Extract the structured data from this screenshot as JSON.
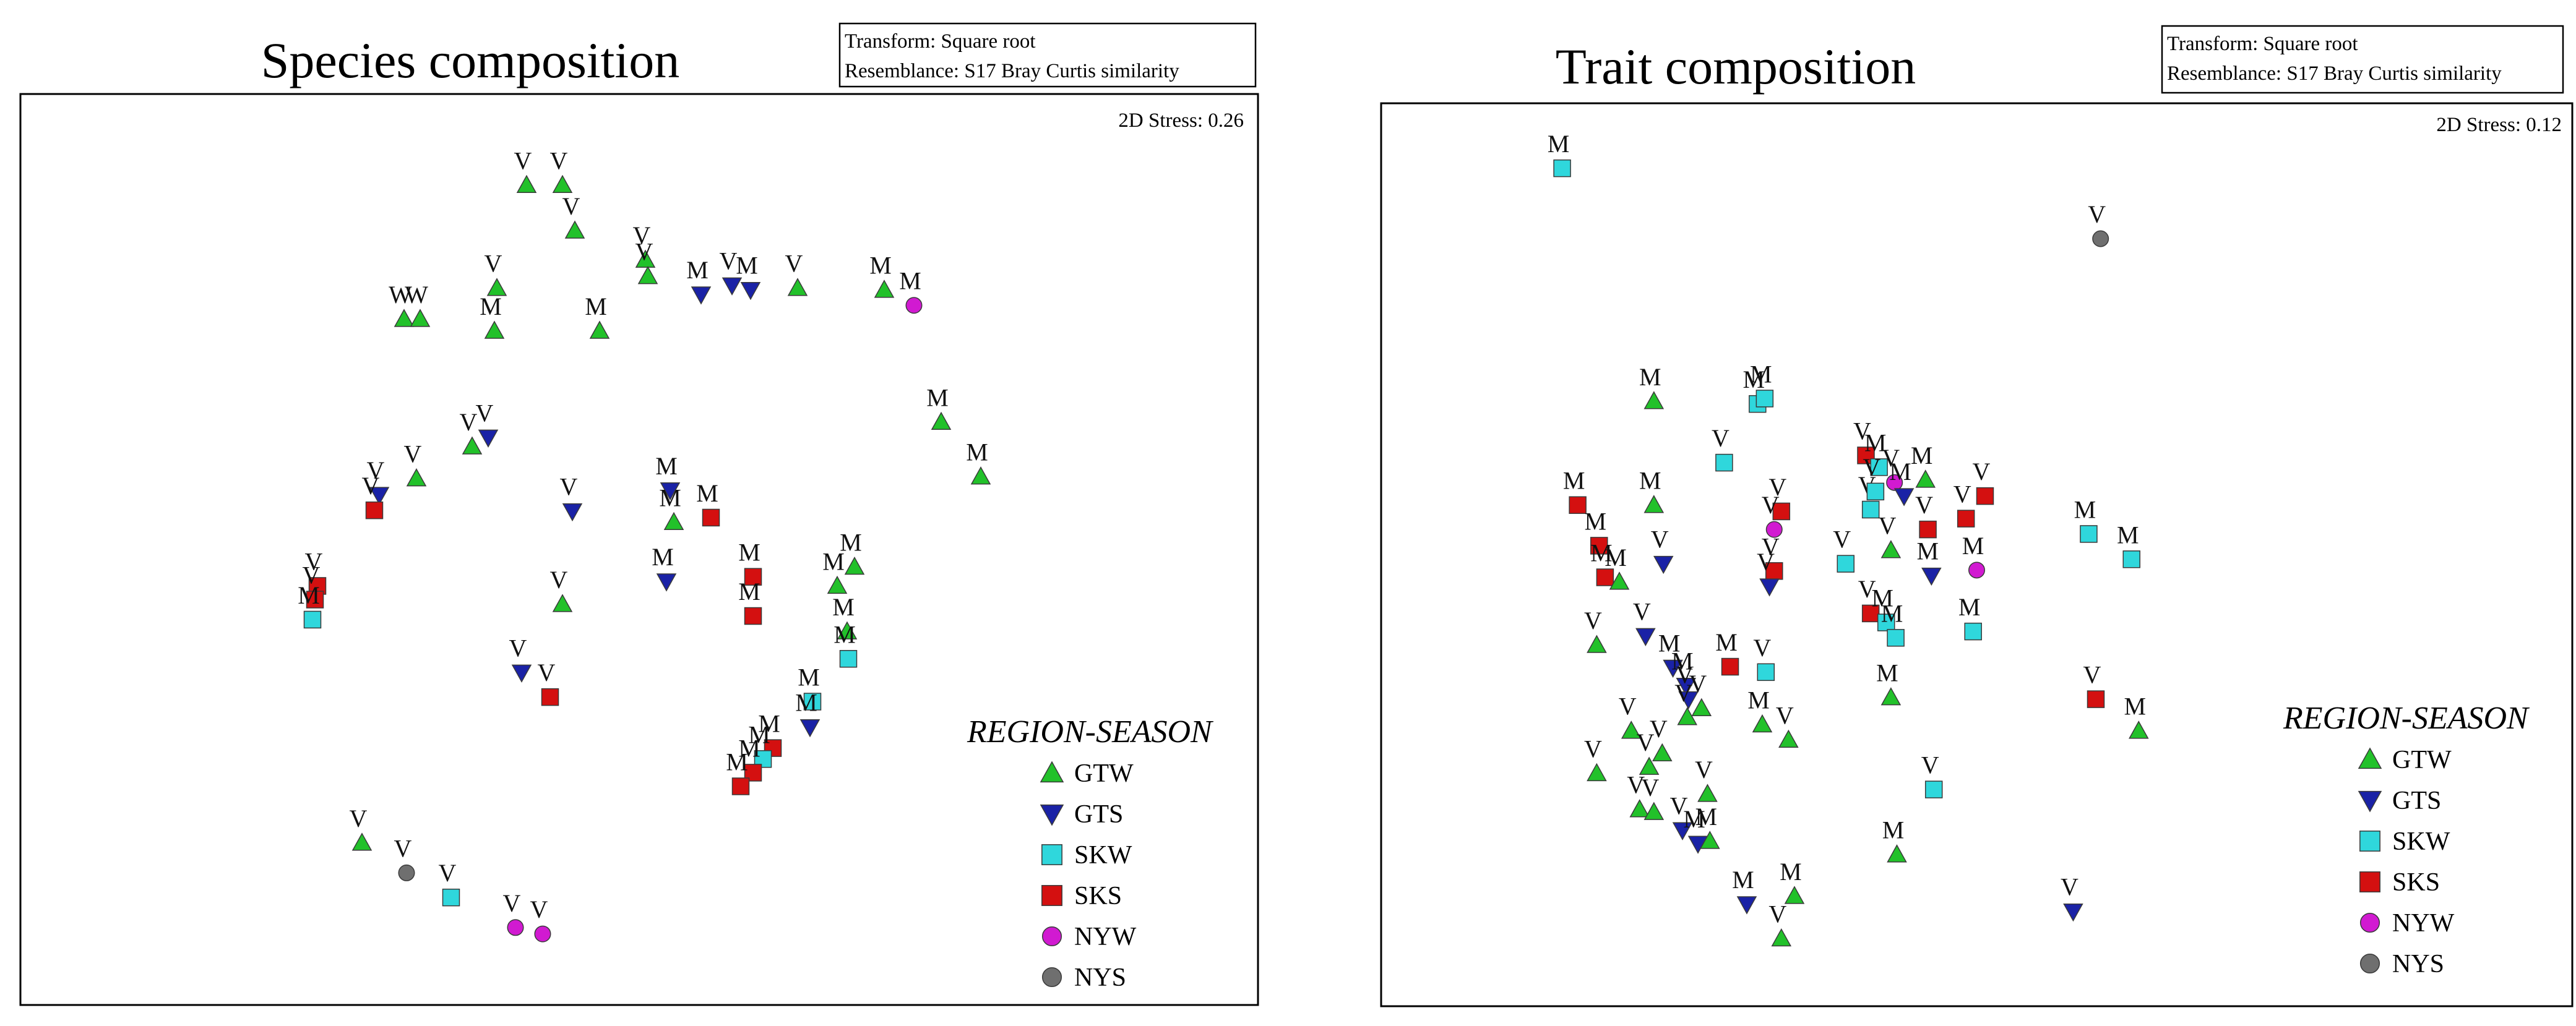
{
  "chart_data": [
    {
      "type": "scatter",
      "title": "Species composition",
      "info_lines": [
        "Transform: Square root",
        "Resemblance: S17 Bray Curtis similarity"
      ],
      "stress": "2D Stress: 0.26",
      "xlabel": "",
      "ylabel": "",
      "grid": false,
      "legend_position": "bottom-right",
      "legend_title": "REGION-SEASON",
      "groups": [
        {
          "name": "GTW",
          "shape": "triangle-up",
          "color": "#22c12a"
        },
        {
          "name": "GTS",
          "shape": "triangle-down",
          "color": "#1a22a6"
        },
        {
          "name": "SKW",
          "shape": "square",
          "color": "#2fd7dc"
        },
        {
          "name": "SKS",
          "shape": "square",
          "color": "#d41010"
        },
        {
          "name": "NYW",
          "shape": "circle",
          "color": "#d11ad1"
        },
        {
          "name": "NYS",
          "shape": "circle",
          "color": "#6f6f6f"
        }
      ],
      "points": [
        {
          "group": "GTW",
          "label": "V",
          "x": 0.409,
          "y": 0.9
        },
        {
          "group": "GTW",
          "label": "V",
          "x": 0.438,
          "y": 0.9
        },
        {
          "group": "GTW",
          "label": "V",
          "x": 0.448,
          "y": 0.85
        },
        {
          "group": "GTW",
          "label": "V",
          "x": 0.505,
          "y": 0.818
        },
        {
          "group": "GTW",
          "label": "V",
          "x": 0.507,
          "y": 0.8
        },
        {
          "group": "GTW",
          "label": "V",
          "x": 0.385,
          "y": 0.787
        },
        {
          "group": "GTW",
          "label": "W",
          "x": 0.31,
          "y": 0.753
        },
        {
          "group": "GTW",
          "label": "W",
          "x": 0.323,
          "y": 0.753
        },
        {
          "group": "GTW",
          "label": "M",
          "x": 0.383,
          "y": 0.74
        },
        {
          "group": "GTW",
          "label": "M",
          "x": 0.468,
          "y": 0.74
        },
        {
          "group": "GTS",
          "label": "M",
          "x": 0.55,
          "y": 0.78
        },
        {
          "group": "GTS",
          "label": "V",
          "x": 0.575,
          "y": 0.79
        },
        {
          "group": "GTS",
          "label": "M",
          "x": 0.59,
          "y": 0.785
        },
        {
          "group": "GTW",
          "label": "V",
          "x": 0.628,
          "y": 0.787
        },
        {
          "group": "GTW",
          "label": "M",
          "x": 0.698,
          "y": 0.785
        },
        {
          "group": "NYW",
          "label": "M",
          "x": 0.722,
          "y": 0.768
        },
        {
          "group": "GTS",
          "label": "V",
          "x": 0.378,
          "y": 0.623
        },
        {
          "group": "GTW",
          "label": "V",
          "x": 0.365,
          "y": 0.613
        },
        {
          "group": "GTW",
          "label": "M",
          "x": 0.744,
          "y": 0.64
        },
        {
          "group": "GTW",
          "label": "M",
          "x": 0.776,
          "y": 0.58
        },
        {
          "group": "GTW",
          "label": "V",
          "x": 0.32,
          "y": 0.578
        },
        {
          "group": "GTS",
          "label": "V",
          "x": 0.29,
          "y": 0.56
        },
        {
          "group": "SKS",
          "label": "V",
          "x": 0.286,
          "y": 0.543
        },
        {
          "group": "GTS",
          "label": "V",
          "x": 0.446,
          "y": 0.542
        },
        {
          "group": "GTS",
          "label": "M",
          "x": 0.525,
          "y": 0.565
        },
        {
          "group": "GTW",
          "label": "M",
          "x": 0.528,
          "y": 0.53
        },
        {
          "group": "SKS",
          "label": "M",
          "x": 0.558,
          "y": 0.535
        },
        {
          "group": "SKS",
          "label": "M",
          "x": 0.592,
          "y": 0.47
        },
        {
          "group": "SKS",
          "label": "M",
          "x": 0.592,
          "y": 0.427
        },
        {
          "group": "GTS",
          "label": "M",
          "x": 0.522,
          "y": 0.465
        },
        {
          "group": "GTW",
          "label": "M",
          "x": 0.674,
          "y": 0.481
        },
        {
          "group": "GTW",
          "label": "M",
          "x": 0.66,
          "y": 0.46
        },
        {
          "group": "GTW",
          "label": "M",
          "x": 0.668,
          "y": 0.41
        },
        {
          "group": "SKS",
          "label": "V",
          "x": 0.24,
          "y": 0.46
        },
        {
          "group": "SKS",
          "label": "V",
          "x": 0.238,
          "y": 0.445
        },
        {
          "group": "SKW",
          "label": "M",
          "x": 0.236,
          "y": 0.423
        },
        {
          "group": "GTW",
          "label": "V",
          "x": 0.438,
          "y": 0.44
        },
        {
          "group": "GTS",
          "label": "V",
          "x": 0.405,
          "y": 0.365
        },
        {
          "group": "SKS",
          "label": "V",
          "x": 0.428,
          "y": 0.338
        },
        {
          "group": "SKW",
          "label": "M",
          "x": 0.669,
          "y": 0.38
        },
        {
          "group": "SKW",
          "label": "M",
          "x": 0.64,
          "y": 0.333
        },
        {
          "group": "GTS",
          "label": "M",
          "x": 0.638,
          "y": 0.305
        },
        {
          "group": "SKS",
          "label": "M",
          "x": 0.608,
          "y": 0.282
        },
        {
          "group": "SKW",
          "label": "M",
          "x": 0.6,
          "y": 0.27
        },
        {
          "group": "SKS",
          "label": "M",
          "x": 0.592,
          "y": 0.255
        },
        {
          "group": "SKS",
          "label": "M",
          "x": 0.582,
          "y": 0.24
        },
        {
          "group": "GTW",
          "label": "V",
          "x": 0.276,
          "y": 0.178
        },
        {
          "group": "NYS",
          "label": "V",
          "x": 0.312,
          "y": 0.145
        },
        {
          "group": "SKW",
          "label": "V",
          "x": 0.348,
          "y": 0.118
        },
        {
          "group": "NYW",
          "label": "V",
          "x": 0.4,
          "y": 0.085
        },
        {
          "group": "NYW",
          "label": "V",
          "x": 0.422,
          "y": 0.078
        }
      ]
    },
    {
      "type": "scatter",
      "title": "Trait composition",
      "info_lines": [
        "Transform: Square root",
        "Resemblance: S17 Bray Curtis similarity"
      ],
      "stress": "2D Stress: 0.12",
      "xlabel": "",
      "ylabel": "",
      "grid": false,
      "legend_position": "bottom-right",
      "legend_title": "REGION-SEASON",
      "groups": [
        {
          "name": "GTW",
          "shape": "triangle-up",
          "color": "#22c12a"
        },
        {
          "name": "GTS",
          "shape": "triangle-down",
          "color": "#1a22a6"
        },
        {
          "name": "SKW",
          "shape": "square",
          "color": "#2fd7dc"
        },
        {
          "name": "SKS",
          "shape": "square",
          "color": "#d41010"
        },
        {
          "name": "NYW",
          "shape": "circle",
          "color": "#d11ad1"
        },
        {
          "name": "NYS",
          "shape": "circle",
          "color": "#6f6f6f"
        }
      ],
      "points": [
        {
          "group": "SKW",
          "label": "M",
          "x": 0.152,
          "y": 0.928
        },
        {
          "group": "NYS",
          "label": "V",
          "x": 0.604,
          "y": 0.85
        },
        {
          "group": "GTW",
          "label": "M",
          "x": 0.229,
          "y": 0.67
        },
        {
          "group": "SKW",
          "label": "M",
          "x": 0.316,
          "y": 0.667
        },
        {
          "group": "SKW",
          "label": "M",
          "x": 0.322,
          "y": 0.673
        },
        {
          "group": "SKW",
          "label": "V",
          "x": 0.288,
          "y": 0.602
        },
        {
          "group": "GTW",
          "label": "M",
          "x": 0.229,
          "y": 0.555
        },
        {
          "group": "SKS",
          "label": "M",
          "x": 0.165,
          "y": 0.555
        },
        {
          "group": "SKS",
          "label": "M",
          "x": 0.183,
          "y": 0.51
        },
        {
          "group": "SKS",
          "label": "M",
          "x": 0.188,
          "y": 0.475
        },
        {
          "group": "GTW",
          "label": "M",
          "x": 0.2,
          "y": 0.47
        },
        {
          "group": "GTS",
          "label": "V",
          "x": 0.237,
          "y": 0.49
        },
        {
          "group": "SKS",
          "label": "V",
          "x": 0.336,
          "y": 0.548
        },
        {
          "group": "NYW",
          "label": "V",
          "x": 0.33,
          "y": 0.528
        },
        {
          "group": "SKS",
          "label": "V",
          "x": 0.33,
          "y": 0.482
        },
        {
          "group": "GTS",
          "label": "V",
          "x": 0.326,
          "y": 0.465
        },
        {
          "group": "SKW",
          "label": "V",
          "x": 0.39,
          "y": 0.49
        },
        {
          "group": "SKS",
          "label": "V",
          "x": 0.407,
          "y": 0.61
        },
        {
          "group": "SKW",
          "label": "M",
          "x": 0.418,
          "y": 0.597
        },
        {
          "group": "SKW",
          "label": "V",
          "x": 0.411,
          "y": 0.55
        },
        {
          "group": "SKW",
          "label": "V",
          "x": 0.415,
          "y": 0.57
        },
        {
          "group": "NYW",
          "label": "V",
          "x": 0.431,
          "y": 0.58
        },
        {
          "group": "GTS",
          "label": "M",
          "x": 0.439,
          "y": 0.565
        },
        {
          "group": "GTW",
          "label": "M",
          "x": 0.457,
          "y": 0.583
        },
        {
          "group": "GTW",
          "label": "V",
          "x": 0.428,
          "y": 0.505
        },
        {
          "group": "SKS",
          "label": "V",
          "x": 0.411,
          "y": 0.435
        },
        {
          "group": "SKW",
          "label": "M",
          "x": 0.424,
          "y": 0.425
        },
        {
          "group": "SKW",
          "label": "M",
          "x": 0.432,
          "y": 0.408
        },
        {
          "group": "SKS",
          "label": "V",
          "x": 0.459,
          "y": 0.528
        },
        {
          "group": "GTS",
          "label": "M",
          "x": 0.462,
          "y": 0.477
        },
        {
          "group": "SKS",
          "label": "V",
          "x": 0.491,
          "y": 0.54
        },
        {
          "group": "SKS",
          "label": "V",
          "x": 0.507,
          "y": 0.565
        },
        {
          "group": "NYW",
          "label": "M",
          "x": 0.5,
          "y": 0.483
        },
        {
          "group": "SKW",
          "label": "M",
          "x": 0.497,
          "y": 0.415
        },
        {
          "group": "SKW",
          "label": "M",
          "x": 0.594,
          "y": 0.523
        },
        {
          "group": "GTW",
          "label": "M",
          "x": 0.428,
          "y": 0.342
        },
        {
          "group": "GTW",
          "label": "V",
          "x": 0.181,
          "y": 0.4
        },
        {
          "group": "GTS",
          "label": "V",
          "x": 0.222,
          "y": 0.41
        },
        {
          "group": "GTS",
          "label": "M",
          "x": 0.245,
          "y": 0.375
        },
        {
          "group": "GTS",
          "label": "M",
          "x": 0.256,
          "y": 0.355
        },
        {
          "group": "GTS",
          "label": "V",
          "x": 0.258,
          "y": 0.34
        },
        {
          "group": "GTW",
          "label": "V",
          "x": 0.269,
          "y": 0.33
        },
        {
          "group": "GTW",
          "label": "V",
          "x": 0.257,
          "y": 0.32
        },
        {
          "group": "SKS",
          "label": "M",
          "x": 0.293,
          "y": 0.376
        },
        {
          "group": "SKW",
          "label": "V",
          "x": 0.323,
          "y": 0.37
        },
        {
          "group": "GTW",
          "label": "M",
          "x": 0.32,
          "y": 0.312
        },
        {
          "group": "GTW",
          "label": "V",
          "x": 0.342,
          "y": 0.295
        },
        {
          "group": "GTW",
          "label": "V",
          "x": 0.21,
          "y": 0.305
        },
        {
          "group": "GTW",
          "label": "V",
          "x": 0.236,
          "y": 0.28
        },
        {
          "group": "GTW",
          "label": "V",
          "x": 0.181,
          "y": 0.258
        },
        {
          "group": "GTW",
          "label": "V",
          "x": 0.225,
          "y": 0.265
        },
        {
          "group": "GTW",
          "label": "V",
          "x": 0.274,
          "y": 0.235
        },
        {
          "group": "GTW",
          "label": "V",
          "x": 0.217,
          "y": 0.218
        },
        {
          "group": "GTW",
          "label": "V",
          "x": 0.229,
          "y": 0.215
        },
        {
          "group": "GTS",
          "label": "V",
          "x": 0.253,
          "y": 0.195
        },
        {
          "group": "GTS",
          "label": "M",
          "x": 0.266,
          "y": 0.18
        },
        {
          "group": "GTW",
          "label": "M",
          "x": 0.276,
          "y": 0.183
        },
        {
          "group": "SKW",
          "label": "V",
          "x": 0.464,
          "y": 0.24
        },
        {
          "group": "GTW",
          "label": "M",
          "x": 0.433,
          "y": 0.168
        },
        {
          "group": "GTS",
          "label": "M",
          "x": 0.307,
          "y": 0.113
        },
        {
          "group": "GTW",
          "label": "M",
          "x": 0.347,
          "y": 0.122
        },
        {
          "group": "GTW",
          "label": "V",
          "x": 0.336,
          "y": 0.075
        },
        {
          "group": "SKS",
          "label": "V",
          "x": 0.6,
          "y": 0.34
        },
        {
          "group": "GTW",
          "label": "M",
          "x": 0.636,
          "y": 0.305
        },
        {
          "group": "SKW",
          "label": "M",
          "x": 0.63,
          "y": 0.495
        },
        {
          "group": "GTS",
          "label": "V",
          "x": 0.581,
          "y": 0.105
        }
      ]
    }
  ]
}
